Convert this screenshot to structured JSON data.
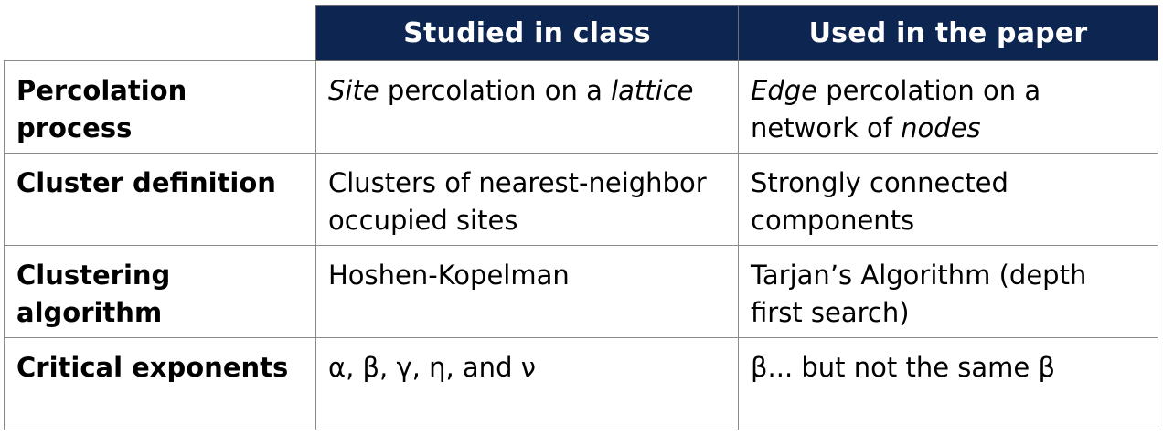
{
  "headers": {
    "corner": "",
    "col_a": "Studied in class",
    "col_b": "Used in the paper"
  },
  "rows": [
    {
      "label": "Percolation process",
      "a": {
        "p1_em": "Site",
        "p2": " percolation on a ",
        "p3_em": "lattice"
      },
      "b": {
        "p1_em": "Edge",
        "p2": " percolation on a network of ",
        "p3_em": "nodes"
      }
    },
    {
      "label": "Cluster definition",
      "a": "Clusters of nearest-neighbor occupied sites",
      "b": "Strongly connected components"
    },
    {
      "label": "Clustering algorithm",
      "a": "Hoshen-Kopelman",
      "b": "Tarjan’s Algorithm (depth first search)"
    },
    {
      "label": "Critical exponents",
      "a": "α, β, γ, η, and ν",
      "b": "β... but not the same β"
    }
  ]
}
